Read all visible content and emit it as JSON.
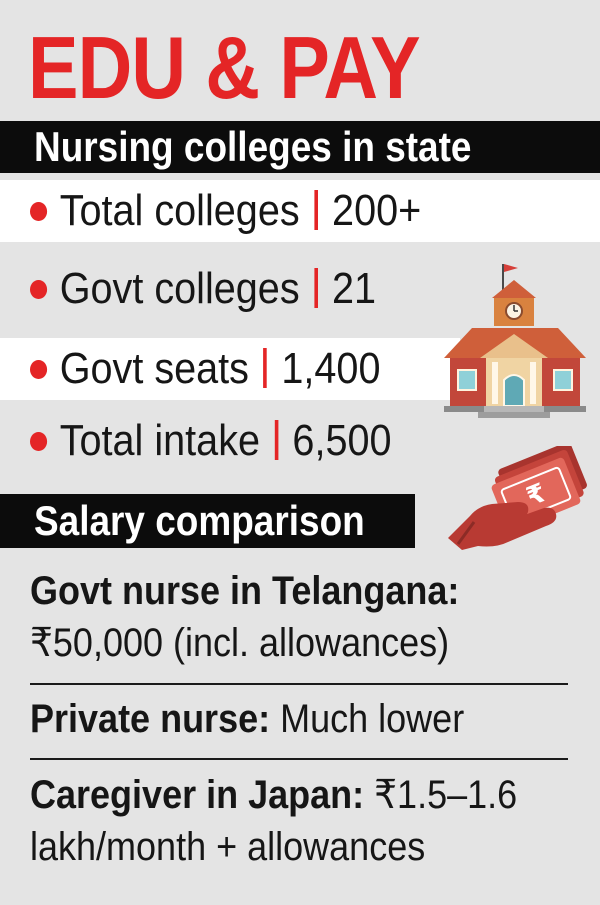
{
  "title": "EDU & PAY",
  "colleges_section": {
    "heading": "Nursing colleges in state",
    "rows": [
      {
        "label": "Total colleges",
        "value": "200+"
      },
      {
        "label": "Govt colleges",
        "value": "21"
      },
      {
        "label": "Govt seats",
        "value": "1,400"
      },
      {
        "label": "Total intake",
        "value": "6,500"
      }
    ]
  },
  "salary_section": {
    "heading": "Salary comparison",
    "govt_nurse": {
      "label": "Govt nurse in Telangana:",
      "value": "₹50,000 (incl. allowances)"
    },
    "private_nurse": {
      "label": "Private nurse:",
      "value": "Much lower"
    },
    "caregiver_japan": {
      "label": "Caregiver in Japan:",
      "value": "₹1.5–1.6",
      "value_line2": "lakh/month + allowances"
    }
  },
  "icons": {
    "building": "school-building-icon",
    "money": "hand-holding-rupee-notes-icon"
  },
  "colors": {
    "accent": "#e42526",
    "band": "#0c0c0c",
    "background": "#e4e4e4",
    "row_highlight": "#ffffff"
  }
}
